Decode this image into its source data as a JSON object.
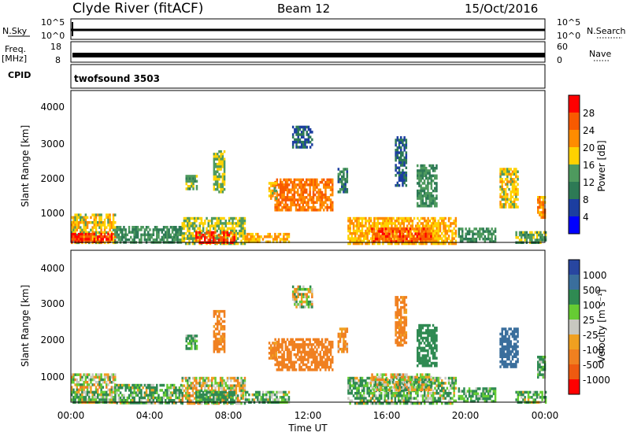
{
  "header": {
    "station": "Clyde River (fitACF)",
    "beam": "Beam 12",
    "date": "15/Oct/2016"
  },
  "strip_noise": {
    "left_label": "N.Sky",
    "right_label": "N.Search",
    "left_ticks": [
      "10^5",
      "10^0"
    ],
    "right_ticks": [
      "10^5",
      "10^0"
    ]
  },
  "strip_freq": {
    "left_label_top": "Freq.",
    "left_label_unit": "[MHz]",
    "left_ticks": [
      "18",
      "8"
    ],
    "right_label": "Nave",
    "right_ticks": [
      "60",
      "0"
    ]
  },
  "strip_cpid": {
    "label": "CPID",
    "value": "twofsound 3503"
  },
  "power_panel": {
    "ylabel": "Slant Range [km]",
    "y_ticks": [
      "4000",
      "3000",
      "2000",
      "1000"
    ],
    "colorbar_label": "Power [dB]",
    "colorbar_ticks": [
      "28",
      "24",
      "20",
      "16",
      "12",
      "8",
      "4"
    ],
    "colorbar_colors": [
      "#ff0000",
      "#f85a00",
      "#ff8c00",
      "#ffd200",
      "#4e9a5e",
      "#2d7a55",
      "#1c3ea0",
      "#0000ff"
    ]
  },
  "velocity_panel": {
    "ylabel": "Slant Range [km]",
    "y_ticks": [
      "4000",
      "3000",
      "2000",
      "1000"
    ],
    "colorbar_label": "Velocity [m s⁻¹]",
    "colorbar_ticks": [
      "1000",
      "500",
      "100",
      "25",
      "-25",
      "-100",
      "-500",
      "-1000"
    ],
    "colorbar_colors": [
      "#2846a0",
      "#3a6e9c",
      "#2f8a52",
      "#66cc33",
      "#c8c8c0",
      "#f0a020",
      "#f08020",
      "#ee5a10",
      "#ff0000"
    ]
  },
  "x_axis": {
    "tick_labels": [
      "00:00",
      "04:00",
      "08:00",
      "12:00",
      "16:00",
      "20:00",
      "00:00"
    ],
    "label": "Time UT"
  },
  "chart_data": {
    "type": "heatmap",
    "title": "Clyde River (fitACF)   Beam 12   15/Oct/2016",
    "xlabel": "Time UT",
    "ylabel": "Slant Range [km]",
    "xlim": [
      0,
      24
    ],
    "ylim": [
      180,
      4500
    ],
    "grid": false,
    "panels": [
      {
        "name": "Power [dB]",
        "colorbar_range": [
          0,
          32
        ],
        "colorbar_ticks": [
          4,
          8,
          12,
          16,
          20,
          24,
          28
        ],
        "patches": [
          {
            "t0": 0.0,
            "t1": 2.2,
            "r0": 180,
            "r1": 1000,
            "value": 18
          },
          {
            "t0": 0.0,
            "t1": 2.2,
            "r0": 180,
            "r1": 450,
            "value": 28
          },
          {
            "t0": 2.2,
            "t1": 5.6,
            "r0": 180,
            "r1": 650,
            "value": 12
          },
          {
            "t0": 5.6,
            "t1": 8.8,
            "r0": 180,
            "r1": 900,
            "value": 16
          },
          {
            "t0": 6.3,
            "t1": 8.3,
            "r0": 180,
            "r1": 500,
            "value": 28
          },
          {
            "t0": 8.8,
            "t1": 11.0,
            "r0": 180,
            "r1": 450,
            "value": 20
          },
          {
            "t0": 10.3,
            "t1": 13.2,
            "r0": 1100,
            "r1": 2000,
            "value": 24
          },
          {
            "t0": 10.0,
            "t1": 10.4,
            "r0": 1400,
            "r1": 1900,
            "value": 18
          },
          {
            "t0": 11.2,
            "t1": 12.2,
            "r0": 2900,
            "r1": 3500,
            "value": 8
          },
          {
            "t0": 13.5,
            "t1": 14.0,
            "r0": 1600,
            "r1": 2300,
            "value": 10
          },
          {
            "t0": 14.0,
            "t1": 19.5,
            "r0": 180,
            "r1": 900,
            "value": 20
          },
          {
            "t0": 15.2,
            "t1": 18.2,
            "r0": 180,
            "r1": 600,
            "value": 26
          },
          {
            "t0": 16.4,
            "t1": 17.0,
            "r0": 1800,
            "r1": 3200,
            "value": 8
          },
          {
            "t0": 17.5,
            "t1": 18.5,
            "r0": 1200,
            "r1": 2400,
            "value": 12
          },
          {
            "t0": 19.6,
            "t1": 21.5,
            "r0": 180,
            "r1": 600,
            "value": 12
          },
          {
            "t0": 21.7,
            "t1": 22.6,
            "r0": 1200,
            "r1": 2300,
            "value": 18
          },
          {
            "t0": 22.5,
            "t1": 24.0,
            "r0": 180,
            "r1": 500,
            "value": 14
          },
          {
            "t0": 23.6,
            "t1": 24.0,
            "r0": 900,
            "r1": 1500,
            "value": 22
          },
          {
            "t0": 7.2,
            "t1": 7.8,
            "r0": 1600,
            "r1": 2800,
            "value": 16
          },
          {
            "t0": 5.8,
            "t1": 6.4,
            "r0": 1700,
            "r1": 2100,
            "value": 14
          }
        ]
      },
      {
        "name": "Velocity [m s-1]",
        "colorbar_range": [
          -1000,
          1000
        ],
        "colorbar_ticks": [
          1000,
          500,
          100,
          25,
          -25,
          -100,
          -500,
          -1000
        ],
        "patches": [
          {
            "t0": 0.0,
            "t1": 2.2,
            "r0": 180,
            "r1": 1000,
            "value": 0
          },
          {
            "t0": 0.0,
            "t1": 2.2,
            "r0": 180,
            "r1": 500,
            "value": 100
          },
          {
            "t0": 2.2,
            "t1": 5.6,
            "r0": 180,
            "r1": 700,
            "value": 100
          },
          {
            "t0": 5.6,
            "t1": 8.8,
            "r0": 180,
            "r1": 900,
            "value": 0
          },
          {
            "t0": 6.3,
            "t1": 8.3,
            "r0": 180,
            "r1": 500,
            "value": 200
          },
          {
            "t0": 8.8,
            "t1": 11.0,
            "r0": 180,
            "r1": 500,
            "value": 100
          },
          {
            "t0": 10.3,
            "t1": 13.2,
            "r0": 1100,
            "r1": 2000,
            "value": -300
          },
          {
            "t0": 10.0,
            "t1": 10.4,
            "r0": 1400,
            "r1": 1900,
            "value": -200
          },
          {
            "t0": 11.2,
            "t1": 12.2,
            "r0": 2900,
            "r1": 3500,
            "value": 0
          },
          {
            "t0": 13.5,
            "t1": 14.0,
            "r0": 1600,
            "r1": 2300,
            "value": -150
          },
          {
            "t0": 14.0,
            "t1": 19.5,
            "r0": 180,
            "r1": 900,
            "value": 100
          },
          {
            "t0": 15.2,
            "t1": 18.2,
            "r0": 500,
            "r1": 1000,
            "value": 0
          },
          {
            "t0": 16.4,
            "t1": 17.0,
            "r0": 1800,
            "r1": 3200,
            "value": -200
          },
          {
            "t0": 17.5,
            "t1": 18.5,
            "r0": 1200,
            "r1": 2400,
            "value": 300
          },
          {
            "t0": 19.6,
            "t1": 21.5,
            "r0": 180,
            "r1": 600,
            "value": 150
          },
          {
            "t0": 21.7,
            "t1": 22.6,
            "r0": 1200,
            "r1": 2300,
            "value": 700
          },
          {
            "t0": 22.5,
            "t1": 24.0,
            "r0": 180,
            "r1": 500,
            "value": 100
          },
          {
            "t0": 23.6,
            "t1": 24.0,
            "r0": 900,
            "r1": 1500,
            "value": 120
          },
          {
            "t0": 7.2,
            "t1": 7.8,
            "r0": 1600,
            "r1": 2800,
            "value": -200
          },
          {
            "t0": 5.8,
            "t1": 6.4,
            "r0": 1700,
            "r1": 2100,
            "value": 150
          }
        ]
      }
    ]
  }
}
